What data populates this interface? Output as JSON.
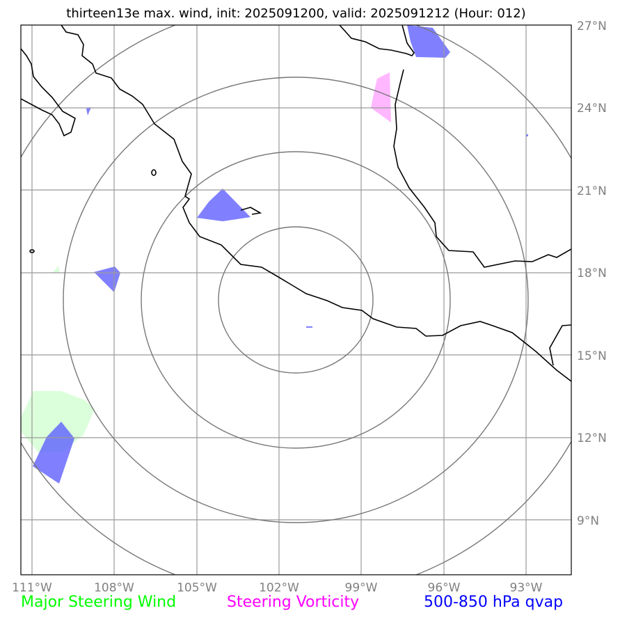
{
  "title": "thirteen13e max. wind, init: 2025091200, valid: 2025091212 (Hour: 012)",
  "lon_ticks": [
    "111°W",
    "108°W",
    "105°W",
    "102°W",
    "99°W",
    "96°W",
    "93°W"
  ],
  "lat_ticks": [
    "27°N",
    "24°N",
    "21°N",
    "18°N",
    "15°N",
    "12°N",
    "9°N"
  ],
  "legend": [
    {
      "label": "Major Steering Wind",
      "color": "#00ff00"
    },
    {
      "label": "Steering Vorticity",
      "color": "#ff00ff"
    },
    {
      "label": "500-850 hPa qvap",
      "color": "#0000ff"
    }
  ]
}
